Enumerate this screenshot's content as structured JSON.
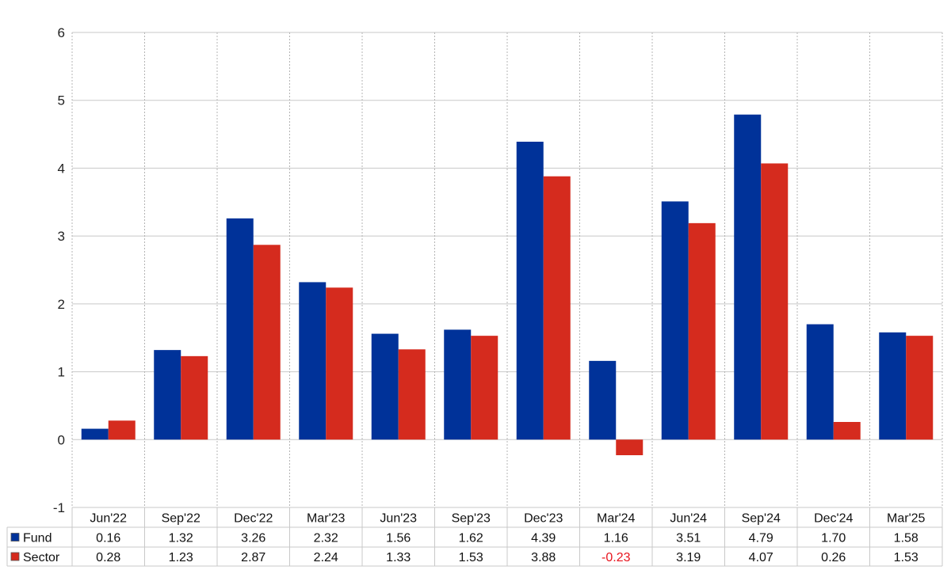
{
  "chart_data": {
    "type": "bar",
    "title": "",
    "xlabel": "",
    "ylabel": "",
    "categories": [
      "Jun'22",
      "Sep'22",
      "Dec'22",
      "Mar'23",
      "Jun'23",
      "Sep'23",
      "Dec'23",
      "Mar'24",
      "Jun'24",
      "Sep'24",
      "Dec'24",
      "Mar'25"
    ],
    "series": [
      {
        "name": "Fund",
        "color": "#003299",
        "values": [
          0.16,
          1.32,
          3.26,
          2.32,
          1.56,
          1.62,
          4.39,
          1.16,
          3.51,
          4.79,
          1.7,
          1.58
        ],
        "labels": [
          "0.16",
          "1.32",
          "3.26",
          "2.32",
          "1.56",
          "1.62",
          "4.39",
          "1.16",
          "3.51",
          "4.79",
          "1.70",
          "1.58"
        ]
      },
      {
        "name": "Sector",
        "color": "#d52b1e",
        "values": [
          0.28,
          1.23,
          2.87,
          2.24,
          1.33,
          1.53,
          3.88,
          -0.23,
          3.19,
          4.07,
          0.26,
          1.53
        ],
        "labels": [
          "0.28",
          "1.23",
          "2.87",
          "2.24",
          "1.33",
          "1.53",
          "3.88",
          "-0.23",
          "3.19",
          "4.07",
          "0.26",
          "1.53"
        ]
      }
    ],
    "ylim": [
      -1,
      6
    ],
    "yticks": [
      "-1",
      "0",
      "1",
      "2",
      "3",
      "4",
      "5",
      "6"
    ],
    "grid": true,
    "legend": "data-table-left",
    "negative_label_color": "#e8141e"
  }
}
